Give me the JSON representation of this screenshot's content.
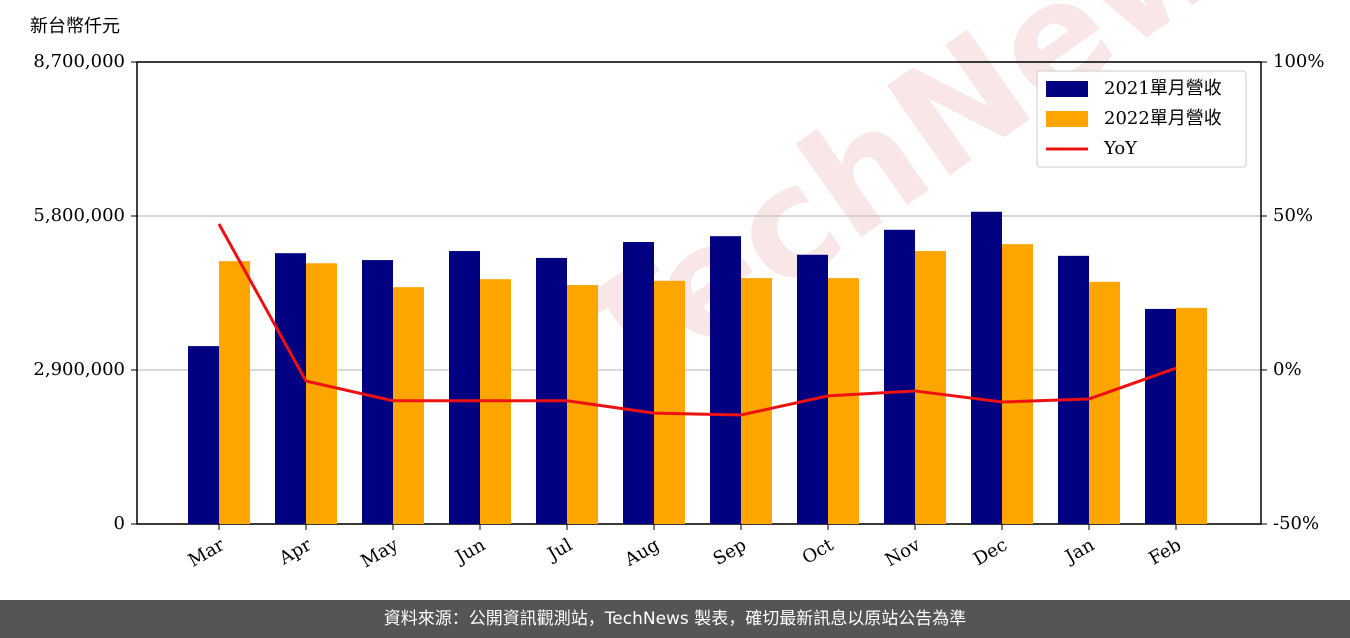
{
  "chart_data": {
    "type": "bar_line",
    "y_label": "新台幣仟元",
    "watermark": "TechNews",
    "source": "資料來源：公開資訊觀測站，TechNews 製表，確切最新訊息以原站公告為準",
    "categories": [
      "Mar",
      "Apr",
      "May",
      "Jun",
      "Jul",
      "Aug",
      "Sep",
      "Oct",
      "Nov",
      "Dec",
      "Jan",
      "Feb"
    ],
    "series": [
      {
        "name": "2021單月營收",
        "color": "#000080",
        "type": "bar",
        "values": [
          3350000,
          5100000,
          4970000,
          5140000,
          5010000,
          5310000,
          5420000,
          5070000,
          5540000,
          5880000,
          5050000,
          4050000
        ]
      },
      {
        "name": "2022單月營收",
        "color": "#ffa500",
        "type": "bar",
        "values": [
          4950000,
          4910000,
          4460000,
          4610000,
          4500000,
          4580000,
          4630000,
          4630000,
          5140000,
          5270000,
          4560000,
          4070000
        ]
      },
      {
        "name": "YoY",
        "color": "#ee1111",
        "type": "line",
        "axis": "y2",
        "values": [
          47.4,
          -3.6,
          -10,
          -10,
          -10,
          -14,
          -14.6,
          -8.4,
          -6.8,
          -10.4,
          -9.4,
          0.6
        ]
      }
    ],
    "ylim": [
      0,
      8700000
    ],
    "yticks": [
      0,
      {
        "value": 2900000,
        "label": "2,900,000"
      },
      {
        "value": 5800000,
        "label": "5,800,000"
      },
      {
        "value": 8700000,
        "label": "8,700,000"
      }
    ],
    "y2lim": [
      -50,
      100
    ],
    "y2ticks": [
      {
        "value": -50,
        "label": "-50%"
      },
      {
        "value": 0,
        "label": "0%"
      },
      {
        "value": 50,
        "label": "50%"
      },
      {
        "value": 100,
        "label": "100%"
      }
    ],
    "grid": true,
    "legend": "upper right"
  }
}
